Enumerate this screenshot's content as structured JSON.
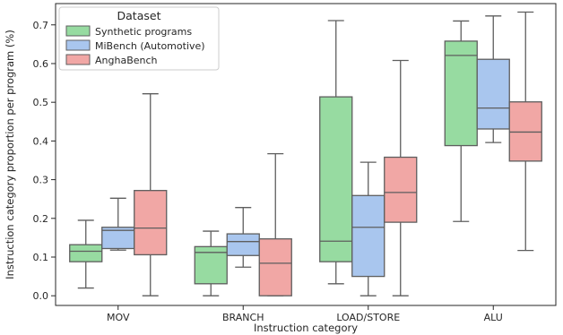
{
  "chart_data": {
    "type": "box",
    "xlabel": "Instruction category",
    "ylabel": "Instruction category proportion per program (%)",
    "ylim": [
      -0.025,
      0.755
    ],
    "yticks": [
      0.0,
      0.1,
      0.2,
      0.3,
      0.4,
      0.5,
      0.6,
      0.7
    ],
    "ytick_labels": [
      "0.0",
      "0.1",
      "0.2",
      "0.3",
      "0.4",
      "0.5",
      "0.6",
      "0.7"
    ],
    "categories": [
      "MOV",
      "BRANCH",
      "LOAD/STORE",
      "ALU"
    ],
    "legend": {
      "title": "Dataset",
      "position": "top-left"
    },
    "series": [
      {
        "name": "Synthetic programs",
        "color": "#97dba1",
        "boxes": [
          {
            "min": 0.02,
            "q1": 0.088,
            "median": 0.115,
            "q3": 0.132,
            "max": 0.195
          },
          {
            "min": 0.0,
            "q1": 0.031,
            "median": 0.112,
            "q3": 0.127,
            "max": 0.167
          },
          {
            "min": 0.031,
            "q1": 0.088,
            "median": 0.141,
            "q3": 0.514,
            "max": 0.711
          },
          {
            "min": 0.192,
            "q1": 0.388,
            "median": 0.621,
            "q3": 0.658,
            "max": 0.71
          }
        ]
      },
      {
        "name": "MiBench (Automotive)",
        "color": "#a9c6ee",
        "boxes": [
          {
            "min": 0.118,
            "q1": 0.122,
            "median": 0.169,
            "q3": 0.177,
            "max": 0.252
          },
          {
            "min": 0.074,
            "q1": 0.104,
            "median": 0.14,
            "q3": 0.16,
            "max": 0.228
          },
          {
            "min": 0.0,
            "q1": 0.05,
            "median": 0.177,
            "q3": 0.259,
            "max": 0.345
          },
          {
            "min": 0.396,
            "q1": 0.431,
            "median": 0.485,
            "q3": 0.611,
            "max": 0.723
          }
        ]
      },
      {
        "name": "AnghaBench",
        "color": "#f1a7a5",
        "boxes": [
          {
            "min": 0.0,
            "q1": 0.106,
            "median": 0.175,
            "q3": 0.272,
            "max": 0.522
          },
          {
            "min": 0.0,
            "q1": 0.0,
            "median": 0.084,
            "q3": 0.147,
            "max": 0.367
          },
          {
            "min": 0.0,
            "q1": 0.19,
            "median": 0.267,
            "q3": 0.358,
            "max": 0.608
          },
          {
            "min": 0.117,
            "q1": 0.348,
            "median": 0.423,
            "q3": 0.501,
            "max": 0.733
          }
        ]
      }
    ]
  }
}
